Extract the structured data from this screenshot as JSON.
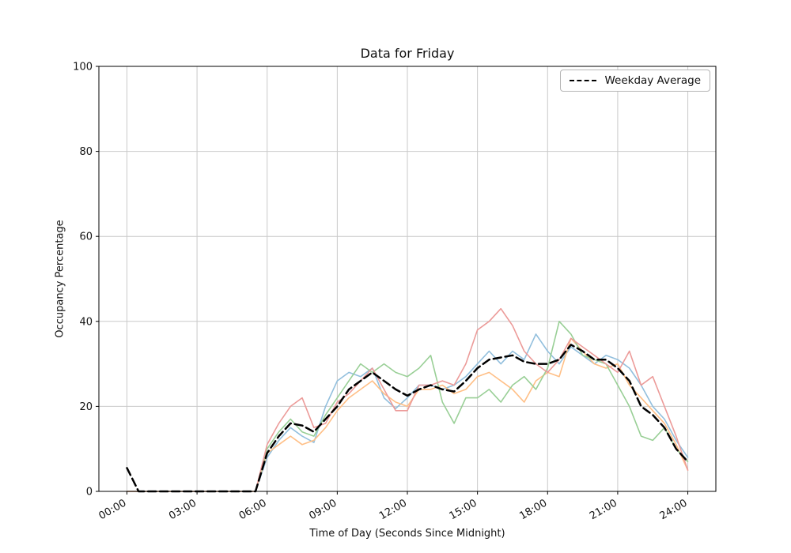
{
  "chart_data": {
    "type": "line",
    "title": "Data for Friday",
    "xlabel": "Time of Day (Seconds Since Midnight)",
    "ylabel": "Occupancy Percentage",
    "xlim": [
      0,
      24
    ],
    "ylim": [
      0,
      100
    ],
    "grid": true,
    "x_ticks": {
      "positions": [
        0,
        3,
        6,
        9,
        12,
        15,
        18,
        21,
        24
      ],
      "labels": [
        "00:00",
        "03:00",
        "06:00",
        "09:00",
        "12:00",
        "15:00",
        "18:00",
        "21:00",
        "24:00"
      ]
    },
    "y_ticks": {
      "positions": [
        0,
        20,
        40,
        60,
        80,
        100
      ],
      "labels": [
        "0",
        "20",
        "40",
        "60",
        "80",
        "100"
      ]
    },
    "legend": {
      "position": "top-right",
      "entries": [
        {
          "label": "Weekday Average",
          "line_style": "dashed",
          "color": "#000000"
        }
      ]
    },
    "x_hours": [
      0,
      0.5,
      1,
      1.5,
      2,
      2.5,
      3,
      3.5,
      4,
      4.5,
      5,
      5.5,
      6,
      6.5,
      7,
      7.5,
      8,
      8.5,
      9,
      9.5,
      10,
      10.5,
      11,
      11.5,
      12,
      12.5,
      13,
      13.5,
      14,
      14.5,
      15,
      15.5,
      16,
      16.5,
      17,
      17.5,
      18,
      18.5,
      19,
      19.5,
      20,
      20.5,
      21,
      21.5,
      22,
      22.5,
      23,
      23.5,
      24
    ],
    "series": [
      {
        "name": "day-line-1",
        "color": "#92bfdd",
        "dashed": false,
        "values": [
          0,
          0,
          0,
          0,
          0,
          0,
          0,
          0,
          0,
          0,
          0,
          0,
          8,
          12,
          15,
          13,
          11.5,
          20,
          26,
          28,
          27,
          29,
          22,
          19.5,
          22,
          25,
          25,
          24,
          25,
          27,
          30,
          33,
          30,
          33,
          31,
          37,
          33,
          30,
          34,
          32,
          30,
          32,
          31,
          29,
          25,
          20,
          17,
          12,
          8
        ]
      },
      {
        "name": "day-line-2",
        "color": "#ffbf86",
        "dashed": false,
        "values": [
          0,
          0,
          0,
          0,
          0,
          0,
          0,
          0,
          0,
          0,
          0,
          0,
          9,
          11,
          13,
          11,
          12,
          15,
          19,
          22,
          24,
          26,
          23,
          21,
          20,
          24,
          24,
          25,
          23,
          24,
          27,
          28,
          26,
          24,
          21,
          26,
          28,
          27,
          36,
          33,
          30,
          29,
          30,
          25,
          22,
          19,
          16,
          11,
          5
        ]
      },
      {
        "name": "day-line-3",
        "color": "#99cf96",
        "dashed": false,
        "values": [
          0,
          0,
          0,
          0,
          0,
          0,
          0,
          0,
          0,
          0,
          0,
          0,
          10,
          14,
          17,
          14,
          13,
          18,
          22,
          26,
          30,
          28,
          30,
          28,
          27,
          29,
          32,
          21,
          16,
          22,
          22,
          24,
          21,
          25,
          27,
          24,
          29,
          40,
          37,
          32,
          31,
          30,
          25,
          20,
          13,
          12,
          15,
          10,
          7
        ]
      },
      {
        "name": "day-line-4",
        "color": "#ec9b99",
        "dashed": false,
        "values": [
          0,
          0,
          0,
          0,
          0,
          0,
          0,
          0,
          0,
          0,
          0,
          0,
          11,
          16,
          20,
          22,
          15,
          16,
          21,
          23,
          26,
          29,
          24,
          19,
          19,
          25,
          25,
          26,
          25,
          30,
          38,
          40,
          43,
          39,
          33,
          30,
          28,
          31,
          36,
          34,
          32,
          30,
          28,
          33,
          25,
          27,
          20,
          13,
          5
        ]
      },
      {
        "name": "weekday-average",
        "color": "#000000",
        "dashed": true,
        "values": [
          5.5,
          0,
          0,
          0,
          0,
          0,
          0,
          0,
          0,
          0,
          0,
          0,
          9,
          13,
          16,
          15.5,
          14,
          17,
          20,
          24,
          26,
          28,
          26,
          24,
          22.5,
          24,
          25,
          24,
          23.5,
          26,
          29,
          31,
          31.5,
          32,
          30.5,
          30,
          30,
          31,
          34.5,
          33,
          31,
          31,
          29,
          26,
          20,
          18,
          15,
          10,
          7
        ]
      }
    ]
  }
}
